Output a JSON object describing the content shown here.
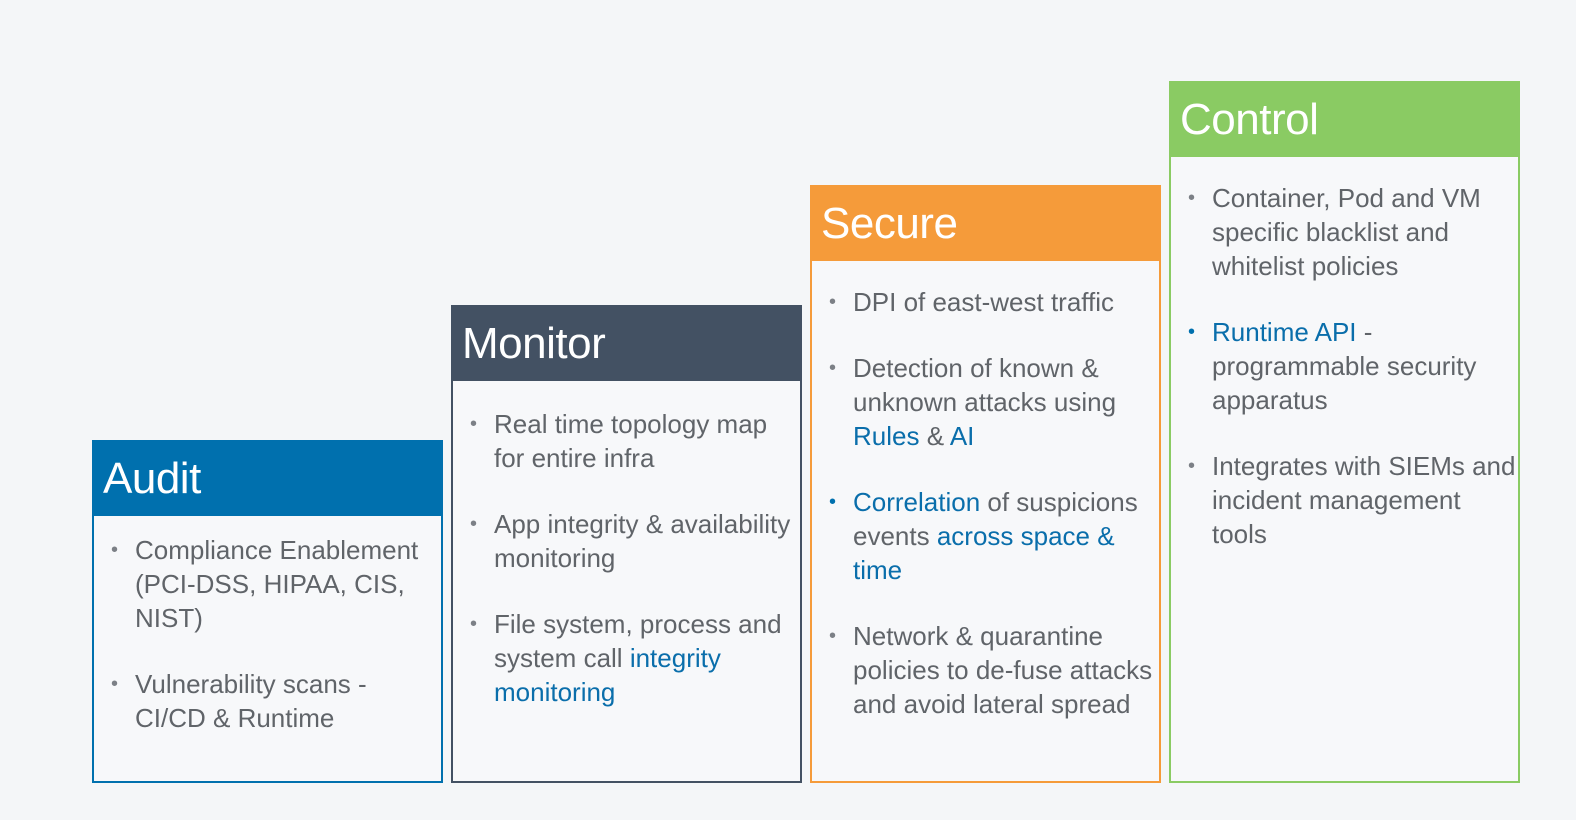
{
  "cards": {
    "audit": {
      "title": "Audit",
      "items": [
        {
          "t1": "Compliance Enablement (PCI-DSS, HIPAA, CIS, NIST)"
        },
        {
          "t1": "Vulnerability scans - CI/CD & Runtime"
        }
      ]
    },
    "monitor": {
      "title": "Monitor",
      "items": [
        {
          "t1": "Real time topology map for entire infra"
        },
        {
          "t1": "App integrity & availability monitoring"
        },
        {
          "t1": "File system, process and system call ",
          "b1": "integrity monitoring"
        }
      ]
    },
    "secure": {
      "title": "Secure",
      "items": [
        {
          "t1": "DPI of east-west traffic"
        },
        {
          "t1": "Detection of known & unknown attacks using ",
          "b1": "Rules",
          "t2": " & ",
          "b2": "AI"
        },
        {
          "b1": "Correlation",
          "t1": " of suspicions events ",
          "b2": "across space & time"
        },
        {
          "t1": "Network & quarantine policies to de-fuse attacks and avoid lateral spread"
        }
      ]
    },
    "control": {
      "title": "Control",
      "items": [
        {
          "t1": "Container, Pod and VM specific blacklist and whitelist policies"
        },
        {
          "b1": "Runtime API",
          "t1": " - programmable security apparatus"
        },
        {
          "t1": "Integrates with SIEMs and incident management tools"
        }
      ]
    }
  },
  "colors": {
    "audit": "#0070ae",
    "monitor": "#435163",
    "secure": "#f59b3a",
    "control": "#8acb63",
    "highlight_text": "#0a6eab",
    "body_text": "#606469",
    "background": "#f4f6f8"
  },
  "icons": {
    "bullet": "•"
  }
}
